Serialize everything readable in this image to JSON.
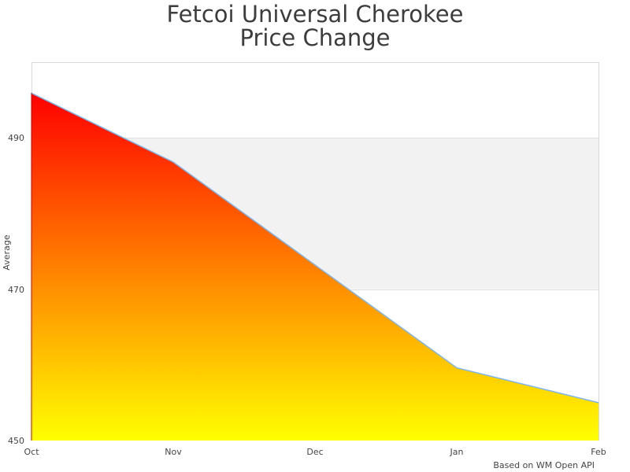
{
  "chart_data": {
    "type": "area",
    "title": "Fetcoi Universal Cherokee Price Change",
    "title_lines": [
      "Fetcoi Universal Cherokee",
      "Price Change"
    ],
    "xlabel": "",
    "ylabel": "Average",
    "categories": [
      "Oct",
      "Nov",
      "Dec",
      "Jan",
      "Feb"
    ],
    "series": [
      {
        "name": "Average",
        "values": [
          495.9,
          486.8,
          473.2,
          459.6,
          455.0
        ]
      }
    ],
    "ylim": [
      450,
      500
    ],
    "yticks": [
      450,
      470,
      490
    ],
    "grid": true,
    "grid_bands": [
      {
        "from": 470,
        "to": 490,
        "color": "#f2f2f2"
      }
    ],
    "fill_gradient": {
      "top": "#ff0000",
      "bottom": "#ffff00"
    },
    "line_color": "#7cb5ec",
    "legend": null,
    "credit": "Based on WM Open API"
  },
  "title": {
    "line1": "Fetcoi Universal Cherokee",
    "line2": "Price Change"
  },
  "yaxis": {
    "label": "Average",
    "ticks": [
      "450",
      "470",
      "490"
    ]
  },
  "xaxis": {
    "ticks": [
      "Oct",
      "Nov",
      "Dec",
      "Jan",
      "Feb"
    ]
  },
  "credit": "Based on WM Open API"
}
